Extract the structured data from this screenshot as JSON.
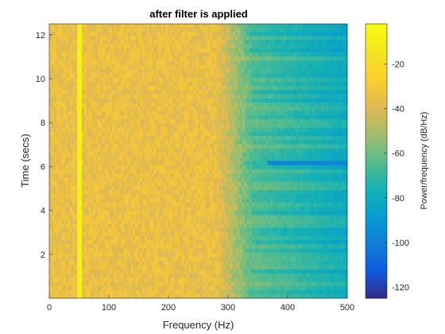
{
  "chart_data": {
    "type": "heatmap",
    "title": "after filter is applied",
    "xlabel": "Frequency (Hz)",
    "ylabel": "Time (secs)",
    "xlim": [
      0,
      500
    ],
    "ylim": [
      0,
      12.5
    ],
    "x_ticks": [
      0,
      100,
      200,
      300,
      400,
      500
    ],
    "y_ticks": [
      2,
      4,
      6,
      8,
      10,
      12
    ],
    "colorbar": {
      "label": "Power/frequency (dB/Hz)",
      "range": [
        -125,
        -2
      ],
      "ticks": [
        -120,
        -100,
        -80,
        -60,
        -40,
        -20
      ],
      "colormap": "parula"
    },
    "grid": false,
    "bin_width_hz": 3.9,
    "time_step_s": 0.19,
    "features": [
      {
        "description": "passband level",
        "freq_range": [
          0,
          280
        ],
        "power_db": -35
      },
      {
        "description": "tonal peak",
        "freq": 50,
        "power_db": -8
      },
      {
        "description": "transition band",
        "freq_range": [
          280,
          340
        ],
        "power_db": [
          -35,
          -65
        ]
      },
      {
        "description": "stopband level",
        "freq_range": [
          340,
          500
        ],
        "power_db": [
          -65,
          -80
        ]
      },
      {
        "description": "low-power time slice",
        "time": 6.2,
        "freq_range": [
          365,
          500
        ],
        "power_db": -98
      }
    ]
  }
}
